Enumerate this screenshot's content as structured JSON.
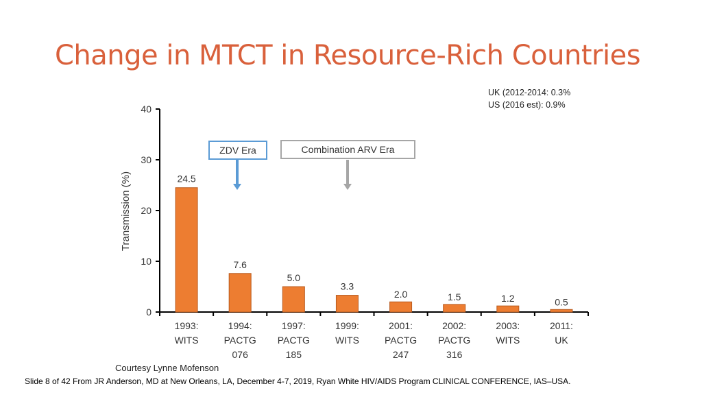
{
  "slide": {
    "title": "Change in MTCT in Resource-Rich Countries",
    "notes": [
      "UK (2012-2014: 0.3%",
      "US (2016 est): 0.9%"
    ],
    "eras": {
      "zdv": "ZDV Era",
      "arv": "Combination ARV Era"
    },
    "courtesy": "Courtesy Lynne Mofenson",
    "footer": "Slide 8 of 42 From JR Anderson, MD at New Orleans, LA, December 4-7, 2019, Ryan White HIV/AIDS Program CLINICAL CONFERENCE, IAS–USA."
  },
  "colors": {
    "bar": "#ed7d31",
    "title": "#d9603b",
    "zdv_arrow": "#5b9bd5",
    "arv_arrow": "#a6a6a6"
  },
  "chart_data": {
    "type": "bar",
    "ylabel": "Transmission (%)",
    "xlabel": "",
    "ylim": [
      0,
      40
    ],
    "yticks": [
      0,
      10,
      20,
      30,
      40
    ],
    "grid": false,
    "categories": [
      [
        "1993:",
        "WITS"
      ],
      [
        "1994:",
        "PACTG",
        "076"
      ],
      [
        "1997:",
        "PACTG",
        "185"
      ],
      [
        "1999:",
        "WITS"
      ],
      [
        "2001:",
        "PACTG",
        "247"
      ],
      [
        "2002:",
        "PACTG",
        "316"
      ],
      [
        "2003:",
        "WITS"
      ],
      [
        "2011:",
        "UK"
      ]
    ],
    "values": [
      24.5,
      7.6,
      5.0,
      3.3,
      2.0,
      1.5,
      1.2,
      0.5
    ],
    "value_labels": [
      "24.5",
      "7.6",
      "5.0",
      "3.3",
      "2.0",
      "1.5",
      "1.2",
      "0.5"
    ]
  }
}
